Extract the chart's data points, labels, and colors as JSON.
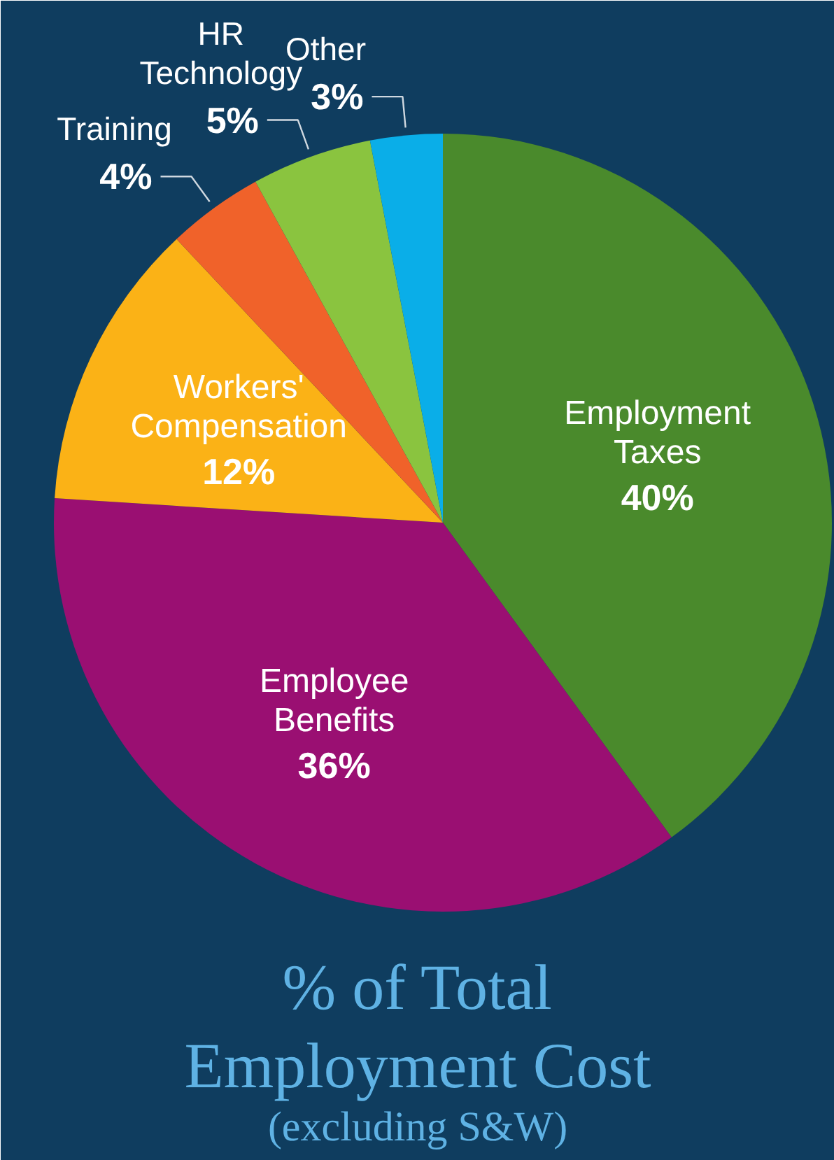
{
  "chart_data": {
    "type": "pie",
    "title": "% of Total Employment Cost",
    "subtitle": "(excluding S&W)",
    "categories": [
      "Employment Taxes",
      "Employee Benefits",
      "Workers' Compensation",
      "Training",
      "HR Technology",
      "Other"
    ],
    "values": [
      40,
      36,
      12,
      4,
      5,
      3
    ],
    "value_labels": [
      "40%",
      "36%",
      "12%",
      "4%",
      "5%",
      "3%"
    ],
    "colors": [
      "#4a8a2c",
      "#9a0f72",
      "#fbb216",
      "#f0622a",
      "#8ac43f",
      "#0aaee8"
    ]
  }
}
